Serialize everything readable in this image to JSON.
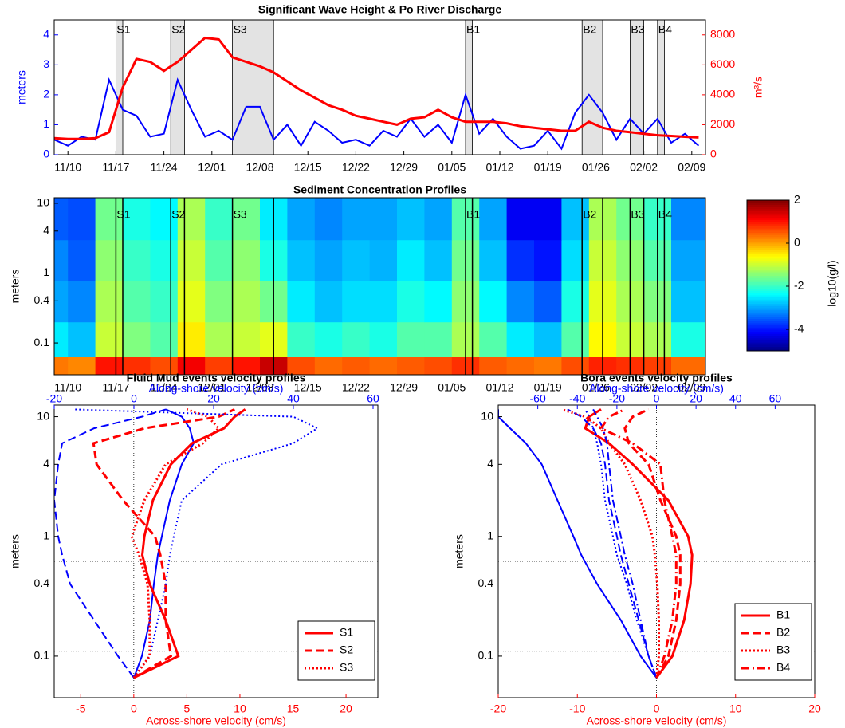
{
  "chart_data": [
    {
      "type": "line",
      "title": "Significant Wave Height & Po River Discharge",
      "ylabel": "meters",
      "y2label": "m³/s",
      "xlim": [
        "11/08",
        "02/11"
      ],
      "xticks": [
        "11/10",
        "11/17",
        "11/24",
        "12/01",
        "12/08",
        "12/15",
        "12/22",
        "12/29",
        "01/05",
        "01/12",
        "01/19",
        "01/26",
        "02/02",
        "02/09"
      ],
      "ylim": [
        0,
        4.5
      ],
      "yticks": [
        0,
        1,
        2,
        3,
        4
      ],
      "y2lim": [
        0,
        9000
      ],
      "y2ticks": [
        0,
        2000,
        4000,
        6000,
        8000
      ],
      "x": [
        "11/08",
        "11/10",
        "11/12",
        "11/14",
        "11/16",
        "11/18",
        "11/20",
        "11/22",
        "11/24",
        "11/26",
        "11/28",
        "11/30",
        "12/02",
        "12/04",
        "12/06",
        "12/08",
        "12/10",
        "12/12",
        "12/14",
        "12/16",
        "12/18",
        "12/20",
        "12/22",
        "12/24",
        "12/26",
        "12/28",
        "12/30",
        "01/01",
        "01/03",
        "01/05",
        "01/07",
        "01/09",
        "01/11",
        "01/13",
        "01/15",
        "01/17",
        "01/19",
        "01/21",
        "01/23",
        "01/25",
        "01/27",
        "01/29",
        "01/31",
        "02/02",
        "02/04",
        "02/06",
        "02/08",
        "02/10"
      ],
      "series": [
        {
          "color": "#0000ff",
          "values": [
            0.5,
            0.3,
            0.6,
            0.5,
            2.5,
            1.5,
            1.3,
            0.6,
            0.7,
            2.5,
            1.5,
            0.6,
            0.8,
            0.5,
            1.6,
            1.6,
            0.5,
            1.0,
            0.3,
            1.1,
            0.8,
            0.4,
            0.5,
            0.3,
            0.8,
            0.6,
            1.2,
            0.6,
            1.0,
            0.4,
            2.0,
            0.7,
            1.2,
            0.6,
            0.2,
            0.3,
            0.8,
            0.2,
            1.4,
            2.0,
            1.4,
            0.5,
            1.2,
            0.7,
            1.2,
            0.4,
            0.7,
            0.3
          ]
        },
        {
          "color": "#ff0000",
          "axis": "y2",
          "values": [
            1100,
            1050,
            1050,
            1100,
            1500,
            4500,
            6400,
            6200,
            5600,
            6200,
            7000,
            7800,
            7700,
            6500,
            6200,
            5900,
            5500,
            4900,
            4300,
            3800,
            3300,
            3000,
            2600,
            2400,
            2200,
            2000,
            2400,
            2500,
            3000,
            2500,
            2200,
            2200,
            2200,
            2100,
            1900,
            1800,
            1700,
            1600,
            1600,
            2200,
            1800,
            1600,
            1500,
            1400,
            1300,
            1250,
            1200,
            1150
          ]
        }
      ],
      "events": [
        {
          "label": "S1",
          "start": "11/17",
          "end": "11/18"
        },
        {
          "label": "S2",
          "start": "11/25",
          "end": "11/27"
        },
        {
          "label": "S3",
          "start": "12/04",
          "end": "12/10"
        },
        {
          "label": "B1",
          "start": "01/07",
          "end": "01/08"
        },
        {
          "label": "B2",
          "start": "01/24",
          "end": "01/27"
        },
        {
          "label": "B3",
          "start": "01/31",
          "end": "02/02"
        },
        {
          "label": "B4",
          "start": "02/04",
          "end": "02/05"
        }
      ]
    },
    {
      "type": "heatmap",
      "title": "Sediment Concentration Profiles",
      "ylabel": "meters",
      "log_y": true,
      "xlim": [
        "11/08",
        "02/11"
      ],
      "xticks": [
        "11/10",
        "11/17",
        "11/24",
        "12/01",
        "12/08",
        "12/15",
        "12/22",
        "12/29",
        "01/05",
        "01/12",
        "01/19",
        "01/26",
        "02/02",
        "02/09"
      ],
      "ylim": [
        0.035,
        12
      ],
      "yticks": [
        0.1,
        0.4,
        1,
        4,
        10
      ],
      "x": [
        "11/08",
        "11/12",
        "11/16",
        "11/20",
        "11/24",
        "11/28",
        "12/02",
        "12/06",
        "12/10",
        "12/14",
        "12/18",
        "12/22",
        "12/26",
        "12/30",
        "01/03",
        "01/07",
        "01/11",
        "01/15",
        "01/19",
        "01/23",
        "01/27",
        "01/31",
        "02/04",
        "02/08"
      ],
      "y": [
        0.04,
        0.1,
        0.4,
        1.5,
        6
      ],
      "z": [
        [
          0.3,
          0.2,
          1.0,
          0.8,
          0.6,
          1.2,
          0.7,
          1.0,
          1.5,
          0.6,
          0.4,
          0.5,
          0.4,
          0.5,
          0.6,
          0.8,
          0.5,
          0.4,
          0.3,
          0.6,
          0.9,
          0.8,
          0.7,
          0.4
        ],
        [
          -2.5,
          -2.8,
          -1.0,
          -1.5,
          -1.8,
          -0.5,
          -1.2,
          -1.0,
          -0.8,
          -2.0,
          -2.2,
          -2.0,
          -2.2,
          -1.8,
          -1.8,
          -1.2,
          -1.8,
          -2.5,
          -2.8,
          -1.8,
          -0.6,
          -1.0,
          -1.2,
          -2.2
        ],
        [
          -3.0,
          -3.2,
          -1.2,
          -1.8,
          -2.0,
          -0.8,
          -1.5,
          -1.2,
          -1.6,
          -2.5,
          -2.8,
          -2.6,
          -2.6,
          -2.2,
          -2.4,
          -1.4,
          -2.4,
          -3.2,
          -3.5,
          -2.2,
          -0.8,
          -1.2,
          -1.5,
          -2.8
        ],
        [
          -3.2,
          -3.5,
          -1.4,
          -2.0,
          -2.2,
          -1.0,
          -1.8,
          -1.4,
          -2.2,
          -2.8,
          -3.0,
          -2.8,
          -2.9,
          -2.5,
          -2.8,
          -1.6,
          -2.8,
          -3.8,
          -4.0,
          -2.6,
          -1.0,
          -1.4,
          -1.8,
          -3.0
        ],
        [
          -3.5,
          -3.6,
          -1.6,
          -2.2,
          -2.4,
          -1.2,
          -2.0,
          -1.6,
          -2.5,
          -3.0,
          -3.2,
          -3.0,
          -3.0,
          -2.8,
          -3.0,
          -1.8,
          -3.0,
          -4.2,
          -4.2,
          -2.8,
          -1.2,
          -1.6,
          -2.0,
          -3.2
        ]
      ],
      "colormap": "jet",
      "colorbar": {
        "label": "log10(g/l)",
        "lim": [
          -5,
          2
        ],
        "ticks": [
          2,
          0,
          -2,
          -4
        ]
      }
    },
    {
      "type": "profile",
      "title": "Fluid Mud events velocity profiles",
      "xlabel": "Across-shore velocity (cm/s)",
      "x2label": "Along-shore velocity (cm/s)",
      "ylabel": "meters",
      "xlim": [
        -7.5,
        23
      ],
      "xticks": [
        -5,
        0,
        5,
        10,
        15,
        20
      ],
      "xcolor": "#ff0000",
      "x2lim": [
        -20,
        61.2
      ],
      "x2ticks": [
        -20,
        0,
        20,
        40,
        60
      ],
      "x2color": "#0000ff",
      "log_y": true,
      "ylim": [
        0.045,
        12.5
      ],
      "yticks": [
        0.1,
        0.4,
        1,
        4,
        10
      ],
      "reference_y": [
        0.62,
        0.11
      ],
      "legend": "lower right",
      "y": [
        0.066,
        0.1,
        0.2,
        0.4,
        0.7,
        1,
        2,
        4,
        6,
        8,
        10,
        11.5
      ],
      "series": [
        {
          "name": "S1",
          "dash": "solid",
          "across": [
            0,
            4.2,
            3,
            1.5,
            0.8,
            1.0,
            1.8,
            3.5,
            5.5,
            8.5,
            9.5,
            10.5
          ],
          "along": [
            0,
            2,
            4,
            5,
            6,
            7,
            9,
            12,
            15,
            14,
            12,
            8
          ]
        },
        {
          "name": "S2",
          "dash": "dashed",
          "across": [
            0,
            3.5,
            3,
            3,
            2.5,
            2,
            -1,
            -3.5,
            -3.8,
            1,
            8,
            9.5
          ],
          "along": [
            0,
            -4,
            -10,
            -16,
            -18,
            -19,
            -20,
            -19,
            -18,
            -10,
            2,
            8
          ]
        },
        {
          "name": "S3",
          "dash": "dotted",
          "across": [
            0,
            1.5,
            1.5,
            1.3,
            0.5,
            -0.2,
            1,
            3,
            6.5,
            8,
            7,
            5
          ],
          "along": [
            0,
            4,
            6,
            8,
            9,
            10,
            12,
            22,
            40,
            46,
            40,
            -15
          ]
        }
      ]
    },
    {
      "type": "profile",
      "title": "Bora events velocity profiles",
      "xlabel": "Across-shore velocity (cm/s)",
      "x2label": "Along-shore velocity (cm/s)",
      "ylabel": "meters",
      "xlim": [
        -20,
        20
      ],
      "xticks": [
        -20,
        -10,
        0,
        10,
        20
      ],
      "xcolor": "#ff0000",
      "x2lim": [
        -80,
        80
      ],
      "x2ticks": [
        -60,
        -40,
        -20,
        0,
        20,
        40,
        60
      ],
      "x2color": "#0000ff",
      "log_y": true,
      "ylim": [
        0.045,
        12.5
      ],
      "yticks": [
        0.1,
        0.4,
        1,
        4,
        10
      ],
      "reference_y": [
        0.62,
        0.11
      ],
      "legend": "lower right",
      "y": [
        0.066,
        0.1,
        0.2,
        0.4,
        0.7,
        1,
        2,
        4,
        6,
        8,
        10,
        11.5
      ],
      "series": [
        {
          "name": "B1",
          "dash": "solid",
          "across": [
            0,
            2,
            3.5,
            4.3,
            4.5,
            4,
            1.5,
            -3,
            -6,
            -9,
            -8.5,
            -7
          ],
          "along": [
            0,
            -8,
            -18,
            -30,
            -38,
            -42,
            -50,
            -58,
            -66,
            -74,
            -80,
            -80
          ]
        },
        {
          "name": "B2",
          "dash": "dashed",
          "across": [
            0,
            1.5,
            2.5,
            3,
            3,
            2.5,
            0.5,
            -1,
            -3.5,
            -4,
            -3,
            -1
          ],
          "along": [
            0,
            -4,
            -9,
            -14,
            -18,
            -20,
            -24,
            -26,
            -28,
            -32,
            -38,
            -45
          ]
        },
        {
          "name": "B3",
          "dash": "dotted",
          "across": [
            0,
            0.3,
            0.3,
            0.1,
            -0.2,
            -0.5,
            -2,
            -4,
            -6,
            -7,
            -9,
            -12
          ],
          "along": [
            0,
            -4,
            -10,
            -15,
            -20,
            -22,
            -26,
            -28,
            -30,
            -32,
            -34,
            -36
          ]
        },
        {
          "name": "B4",
          "dash": "dashdot",
          "across": [
            0,
            1,
            2,
            2.5,
            2.5,
            2,
            1,
            0.5,
            -3,
            -7,
            -6,
            -4
          ],
          "along": [
            0,
            -4,
            -8,
            -12,
            -16,
            -18,
            -22,
            -24,
            -25,
            -27,
            -30,
            -32
          ]
        }
      ]
    }
  ]
}
